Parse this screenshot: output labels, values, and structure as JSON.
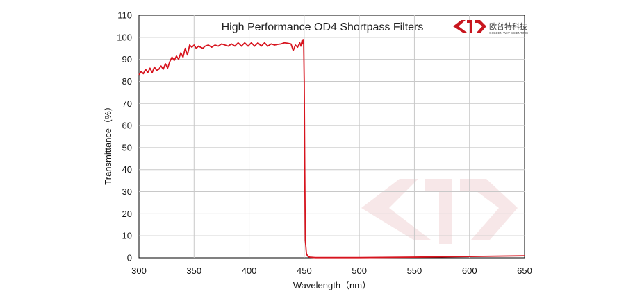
{
  "chart_data": {
    "type": "line",
    "title": "High Performance OD4 Shortpass  Filters",
    "xlabel": "Wavelength（nm）",
    "ylabel": "Transmittance（%）",
    "xlim": [
      300,
      650
    ],
    "ylim": [
      0,
      110
    ],
    "xticks": [
      300,
      350,
      400,
      450,
      500,
      550,
      600,
      650
    ],
    "yticks": [
      0,
      10,
      20,
      30,
      40,
      50,
      60,
      70,
      80,
      90,
      100,
      110
    ],
    "grid": true,
    "legend": "none",
    "series": [
      {
        "color": "#d7141e",
        "x": [
          300,
          302,
          304,
          306,
          308,
          310,
          312,
          314,
          316,
          318,
          320,
          322,
          324,
          326,
          328,
          330,
          332,
          334,
          336,
          338,
          340,
          342,
          344,
          346,
          348,
          350,
          352,
          354,
          356,
          358,
          360,
          363,
          366,
          369,
          372,
          375,
          378,
          381,
          384,
          387,
          390,
          393,
          396,
          399,
          402,
          405,
          408,
          411,
          414,
          417,
          420,
          423,
          426,
          429,
          432,
          435,
          438,
          440,
          442,
          444,
          446,
          447,
          448,
          448.5,
          449,
          449.5,
          450,
          450.5,
          451,
          452,
          453,
          455,
          460,
          480,
          500,
          550,
          600,
          650
        ],
        "values": [
          83,
          84.5,
          83.5,
          85.5,
          84,
          86,
          84,
          86.5,
          85,
          85.5,
          87,
          85.5,
          88,
          86,
          89,
          91,
          89.5,
          91.5,
          90,
          93,
          91,
          95,
          92,
          96.5,
          95.5,
          96.5,
          95,
          96,
          95.5,
          95,
          96,
          96.5,
          95.5,
          96.5,
          96,
          97,
          96.5,
          96,
          97,
          96,
          97.5,
          96,
          97.5,
          96,
          97.5,
          96,
          97.5,
          96,
          97.5,
          96,
          97,
          96.5,
          96.8,
          97,
          97.5,
          97.3,
          97,
          94,
          96.5,
          95.5,
          97.5,
          96,
          98.5,
          97,
          99,
          97.5,
          80,
          40,
          8,
          2,
          0.8,
          0.3,
          0.1,
          0.1,
          0.1,
          0.3,
          0.6,
          0.9
        ]
      }
    ]
  },
  "brand": {
    "name_cn": "欧普特科技",
    "name_en": "GOLDEN WAY SCIENTIFIC"
  }
}
